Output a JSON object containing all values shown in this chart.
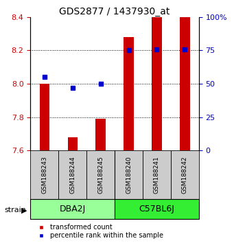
{
  "title": "GDS2877 / 1437930_at",
  "samples": [
    "GSM188243",
    "GSM188244",
    "GSM188245",
    "GSM188240",
    "GSM188241",
    "GSM188242"
  ],
  "groups": [
    {
      "label": "DBA2J",
      "color": "#99ff99"
    },
    {
      "label": "C57BL6J",
      "color": "#33ee33"
    }
  ],
  "red_values": [
    8.0,
    7.68,
    7.79,
    8.28,
    8.4,
    8.4
  ],
  "blue_percentile": [
    55,
    47,
    50,
    75,
    76,
    76
  ],
  "ylim_left": [
    7.6,
    8.4
  ],
  "ylim_right": [
    0,
    100
  ],
  "yticks_left": [
    7.6,
    7.8,
    8.0,
    8.2,
    8.4
  ],
  "yticks_right": [
    0,
    25,
    50,
    75,
    100
  ],
  "ytick_labels_right": [
    "0",
    "25",
    "50",
    "75",
    "100%"
  ],
  "bar_bottom": 7.6,
  "bar_width": 0.35,
  "left_color": "#cc0000",
  "right_color": "#0000cc",
  "group_box_color": "#cccccc",
  "legend_red": "transformed count",
  "legend_blue": "percentile rank within the sample"
}
